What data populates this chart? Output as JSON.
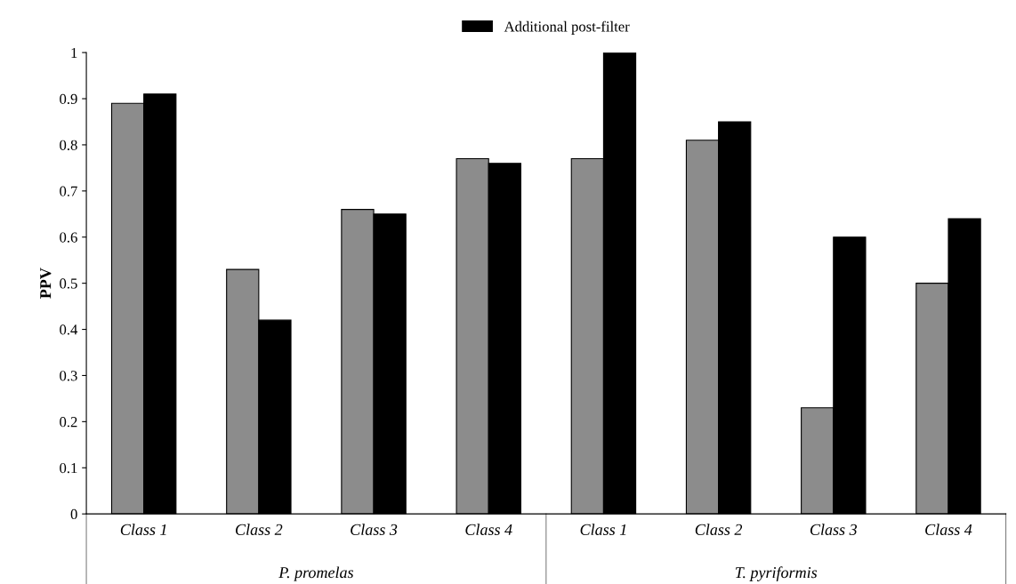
{
  "chart_data": {
    "type": "bar",
    "ylabel": "PPV",
    "categories": [
      "Class 1",
      "Class 2",
      "Class 3",
      "Class 4",
      "Class 1",
      "Class 2",
      "Class 3",
      "Class 4"
    ],
    "series": [
      {
        "color": "#8c8c8c",
        "values": [
          0.89,
          0.53,
          0.66,
          0.77,
          0.77,
          0.81,
          0.23,
          0.5
        ]
      },
      {
        "name": "Additional post-filter",
        "color": "#000000",
        "values": [
          0.91,
          0.42,
          0.65,
          0.76,
          1.0,
          0.85,
          0.6,
          0.64
        ]
      }
    ],
    "annotations": [
      "P. promelas",
      "T. pyriformis"
    ],
    "ylim": [
      0,
      1
    ],
    "yticks": [
      0,
      0.1,
      0.2,
      0.3,
      0.4,
      0.5,
      0.6,
      0.7,
      0.8,
      0.9,
      1
    ],
    "grid": false,
    "legend": "top"
  }
}
